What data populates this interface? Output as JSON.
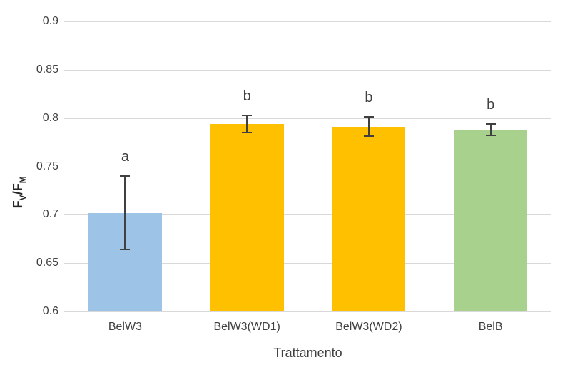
{
  "chart_data": {
    "type": "bar",
    "title": "",
    "xlabel": "Trattamento",
    "ylabel": "FV/FM",
    "ylabel_parts": {
      "base1": "F",
      "sub1": "V",
      "base2": "/F",
      "sub2": "M"
    },
    "categories": [
      "BelW3",
      "BelW3(WD1)",
      "BelW3(WD2)",
      "BelB"
    ],
    "values": [
      0.702,
      0.794,
      0.791,
      0.788
    ],
    "error_bars": [
      0.038,
      0.009,
      0.01,
      0.006
    ],
    "significance_letters": [
      "a",
      "b",
      "b",
      "b"
    ],
    "bar_colors": [
      "#9DC3E6",
      "#FFC000",
      "#FFC000",
      "#A9D18E"
    ],
    "ylim": [
      0.6,
      0.9
    ],
    "yticks": [
      0.9,
      0.85,
      0.8,
      0.75,
      0.7,
      0.65,
      0.6
    ],
    "ytick_labels": [
      "0.9",
      "0.85",
      "0.8",
      "0.75",
      "0.7",
      "0.65",
      "0.6"
    ],
    "grid": true,
    "legend": false,
    "gridline_color": "#d9d9d9",
    "text_color": "#404040",
    "error_bar_color": "#404040",
    "background": "#ffffff"
  }
}
